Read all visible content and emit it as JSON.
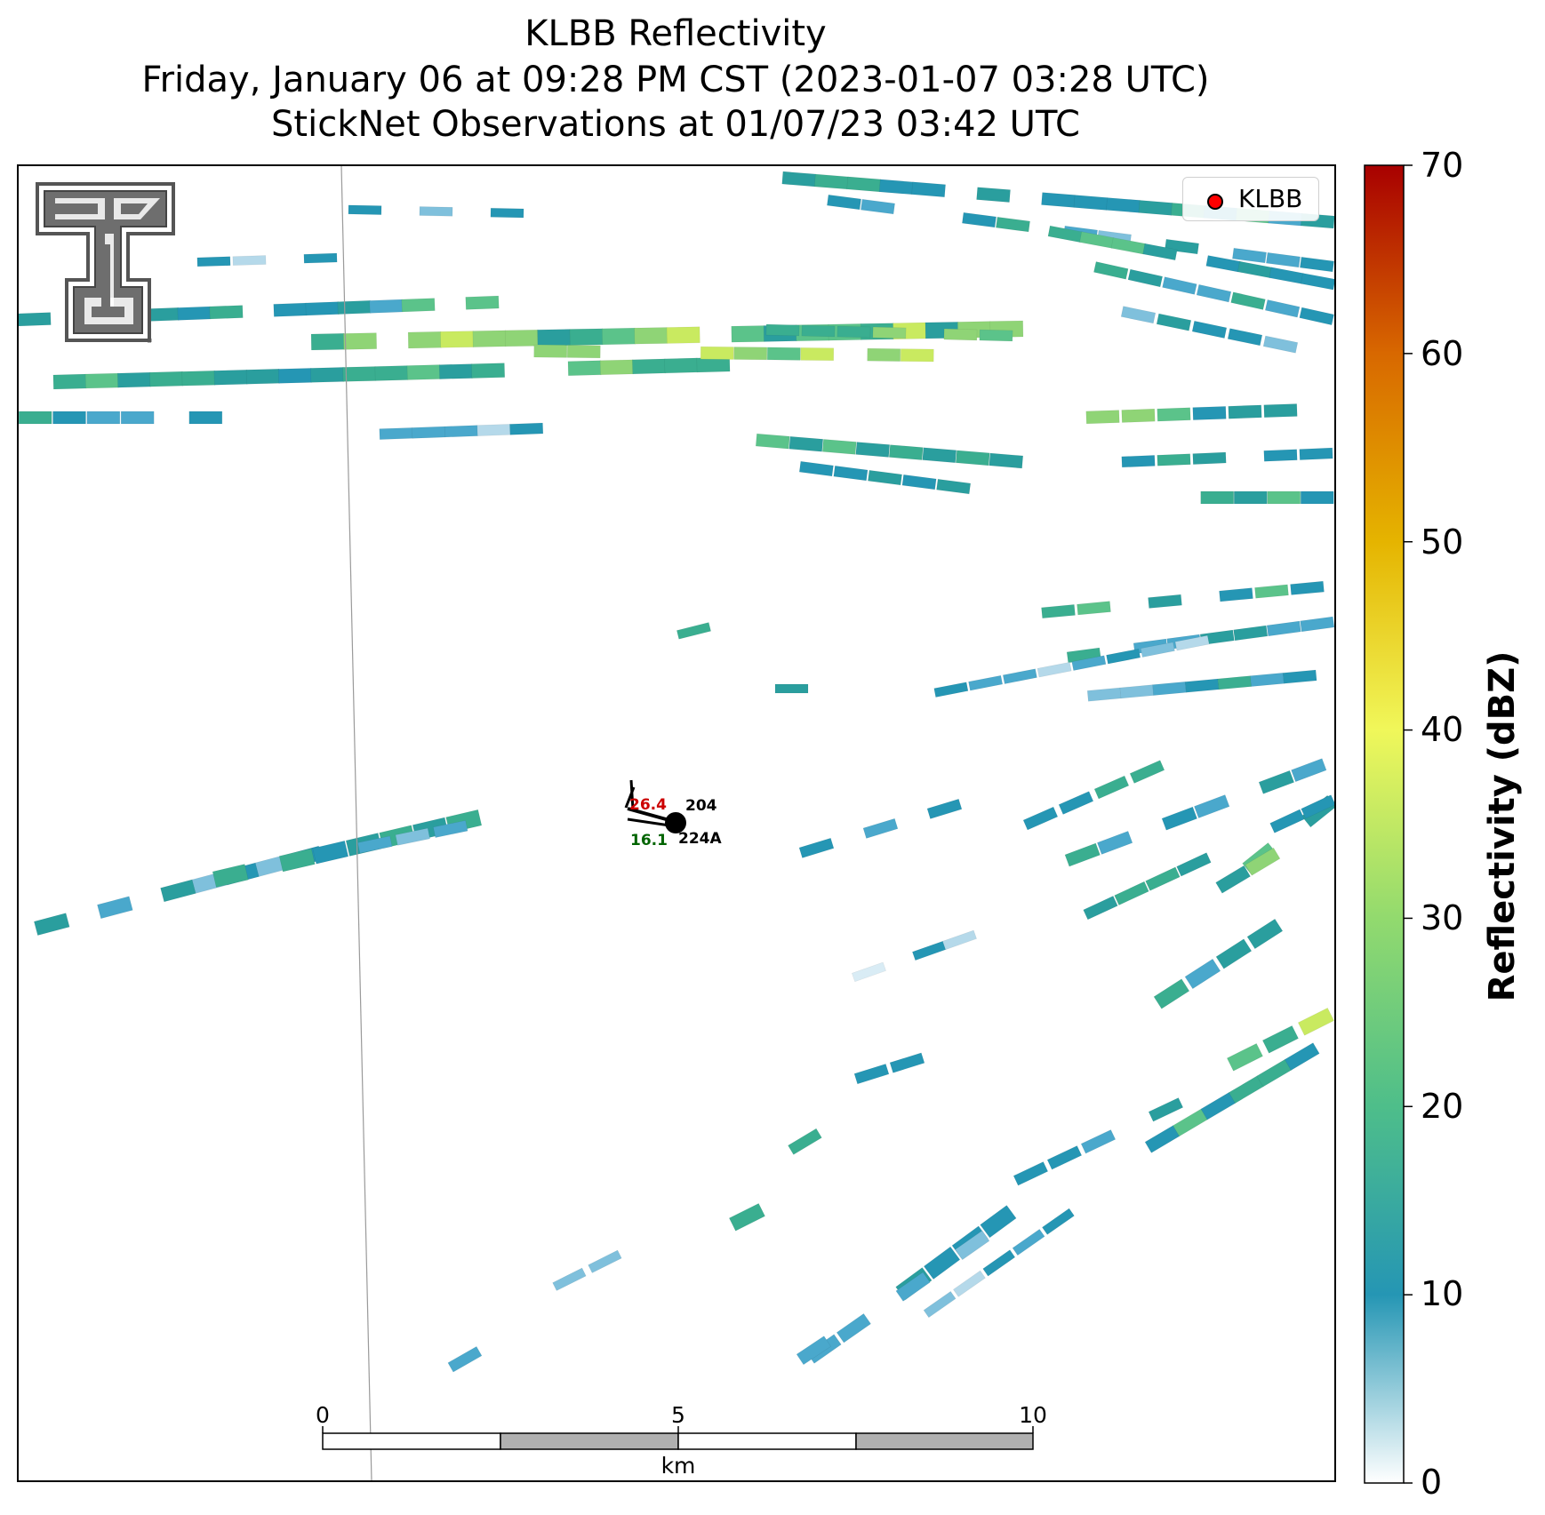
{
  "title": {
    "line1": "KLBB Reflectivity",
    "line2": "Friday, January 06 at 09:28 PM CST (2023-01-07 03:28 UTC)",
    "line3": "StickNet Observations at 01/07/23 03:42 UTC"
  },
  "legend": {
    "label": "KLBB",
    "marker_color": "#ff0000"
  },
  "colorbar": {
    "label": "Reflectivity (dBZ)",
    "ticks": [
      "0",
      "10",
      "20",
      "30",
      "40",
      "50",
      "60",
      "70"
    ],
    "range": [
      0,
      70
    ],
    "stops": [
      "#ffffff",
      "#2596b4",
      "#4ebe8a",
      "#92da6e",
      "#f0f75a",
      "#e5b400",
      "#d86800",
      "#a80000"
    ]
  },
  "scale_bar": {
    "ticks": [
      "0",
      "5",
      "10"
    ],
    "unit": "km"
  },
  "stations": [
    {
      "id": "204",
      "temperature": "26.4",
      "temp_color": "#cc0000"
    },
    {
      "id": "224A",
      "dewpoint": "16.1",
      "dew_color": "#006400"
    }
  ],
  "logo": {
    "name": "Texas Tech Double T",
    "mark": "®"
  }
}
